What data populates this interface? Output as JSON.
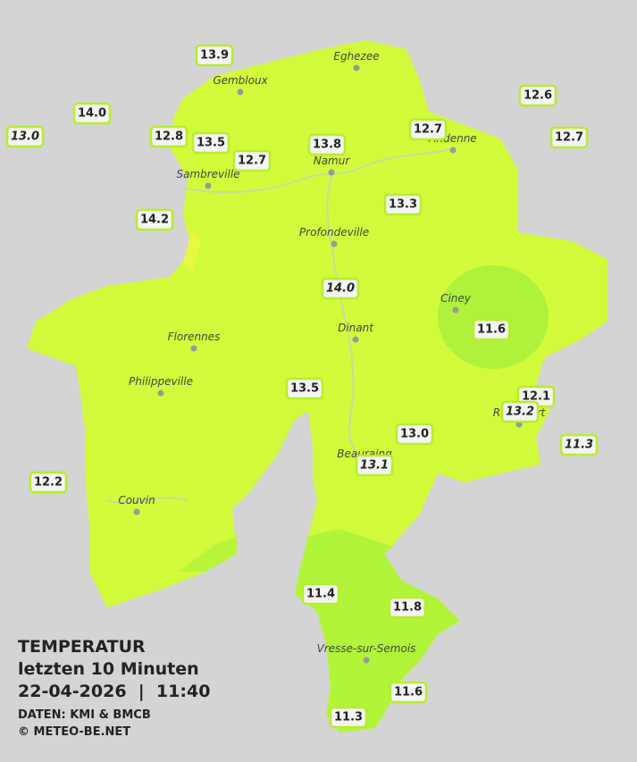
{
  "legend": {
    "title": "TEMPERATUR",
    "subtitle": "letzten 10 Minuten",
    "timestamp": "22-04-2026  |  11:40",
    "source": "DATEN: KMI & BMCB",
    "copyright": "© METEO-BE.NET"
  },
  "cities": [
    "Eghezee",
    "Gembloux",
    "Andenne",
    "Namur",
    "Sambreville",
    "Profondeville",
    "Ciney",
    "Dinant",
    "Florennes",
    "Philippeville",
    "Rochefort",
    "Beauraing",
    "Couvin",
    "Vresse-sur-Semois"
  ],
  "stations": [
    "13.9",
    "14.0",
    "13.0",
    "12.8",
    "13.5",
    "12.7",
    "13.8",
    "12.7",
    "12.6",
    "12.7",
    "14.2",
    "13.3",
    "14.0",
    "11.6",
    "13.5",
    "12.1",
    "13.2",
    "13.0",
    "11.3",
    "13.1",
    "12.2",
    "11.4",
    "11.8",
    "11.6",
    "11.3"
  ]
}
